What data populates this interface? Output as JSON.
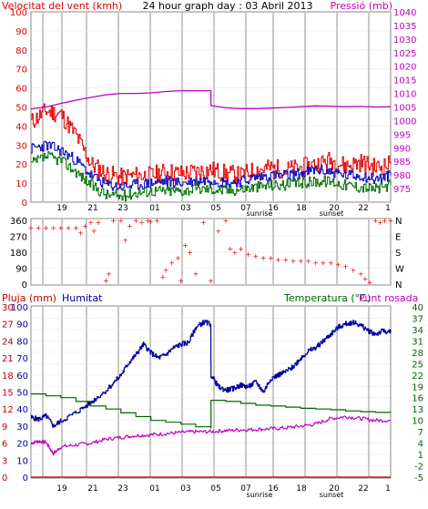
{
  "colors": {
    "wind_max": "#e00000",
    "wind_avg": "#0000c0",
    "wind_min": "#007000",
    "pressure": "#c000c0",
    "rain": "#c00000",
    "humidity": "#0000a0",
    "temperature": "#006400",
    "dewpoint": "#c000c0",
    "grid": "#c8c8c8"
  },
  "chart_data": [
    {
      "type": "line",
      "title": "24 hour graph day : 03 Abril 2013",
      "left_axis_label": "Velocitat del vent (kmh)",
      "right_axis_label": "Pressió (mb)",
      "ylim_left": [
        0,
        100
      ],
      "ylim_right": [
        970,
        1040
      ],
      "left_ticks": [
        0,
        10,
        20,
        30,
        40,
        50,
        60,
        70,
        80,
        90,
        100
      ],
      "right_ticks": [
        975,
        980,
        985,
        990,
        995,
        1000,
        1005,
        1010,
        1015,
        1020,
        1025,
        1030,
        1035,
        1040
      ],
      "x_ticks": [
        "19",
        "21",
        "23",
        "01",
        "03",
        "05",
        "07",
        "16",
        "18",
        "20",
        "22",
        "1"
      ],
      "x_annotations": [
        "sunrise",
        "sunset"
      ],
      "series": [
        {
          "name": "",
          "axis": "left",
          "color": "wind_max",
          "x": [
            0,
            1,
            2,
            3,
            4,
            5,
            6,
            7,
            8,
            9,
            10,
            11,
            12,
            13,
            14,
            15,
            16,
            17,
            18,
            19,
            20,
            21,
            22,
            23,
            24
          ],
          "values": [
            42,
            48,
            46,
            35,
            20,
            15,
            13,
            14,
            14,
            16,
            15,
            16,
            17,
            15,
            14,
            17,
            18,
            17,
            18,
            20,
            22,
            19,
            21,
            18,
            20
          ]
        },
        {
          "name": "",
          "axis": "left",
          "color": "wind_avg",
          "x": [
            0,
            1,
            2,
            3,
            4,
            5,
            6,
            7,
            8,
            9,
            10,
            11,
            12,
            13,
            14,
            15,
            16,
            17,
            18,
            19,
            20,
            21,
            22,
            23,
            24
          ],
          "values": [
            28,
            30,
            27,
            22,
            14,
            9,
            8,
            9,
            10,
            11,
            10,
            11,
            12,
            10,
            11,
            13,
            14,
            14,
            15,
            17,
            16,
            14,
            14,
            12,
            14
          ]
        },
        {
          "name": "",
          "axis": "left",
          "color": "wind_min",
          "x": [
            0,
            1,
            2,
            3,
            4,
            5,
            6,
            7,
            8,
            9,
            10,
            11,
            12,
            13,
            14,
            15,
            16,
            17,
            18,
            19,
            20,
            21,
            22,
            23,
            24
          ],
          "values": [
            20,
            24,
            22,
            16,
            9,
            4,
            3,
            5,
            6,
            6,
            6,
            7,
            7,
            6,
            7,
            8,
            9,
            9,
            10,
            11,
            11,
            9,
            8,
            7,
            9
          ]
        },
        {
          "name": "",
          "axis": "right",
          "color": "pressure",
          "x": [
            0,
            1,
            2,
            3,
            4,
            5,
            6,
            7,
            8,
            9,
            10,
            11,
            12,
            12.01,
            13,
            14,
            15,
            16,
            17,
            18,
            19,
            20,
            21,
            22,
            23,
            24
          ],
          "values": [
            1004.3,
            1005,
            1006.3,
            1007.5,
            1008.5,
            1009.5,
            1010,
            1010,
            1010.2,
            1010.7,
            1011,
            1011,
            1011,
            1005.5,
            1004.7,
            1004.4,
            1004.4,
            1004.6,
            1004.8,
            1005.1,
            1005.4,
            1005.3,
            1005.1,
            1005.2,
            1005,
            1005.1
          ]
        }
      ]
    },
    {
      "type": "scatter",
      "title": "",
      "ylim": [
        0,
        360
      ],
      "y_ticks": [
        0,
        90,
        180,
        270,
        360
      ],
      "compass_labels": [
        "N",
        "W",
        "S",
        "E",
        "N"
      ],
      "series": [
        {
          "name": "",
          "color": "wind_max",
          "x": [
            0,
            0.5,
            1,
            1.5,
            2,
            2.5,
            3,
            3.3,
            3.6,
            4,
            4.2,
            4.5,
            5,
            5.2,
            5.5,
            6,
            6.3,
            6.6,
            7,
            7.4,
            7.8,
            8,
            8.4,
            8.8,
            9,
            9.4,
            9.8,
            10,
            10.3,
            10.6,
            11,
            11.5,
            12,
            12.5,
            13,
            13.3,
            13.6,
            14,
            14.5,
            15,
            15.5,
            16,
            16.5,
            17,
            17.5,
            18,
            18.5,
            19,
            19.5,
            20,
            20.5,
            21,
            21.5,
            22,
            22.3,
            22.6,
            23,
            23.3,
            23.6,
            24
          ],
          "values": [
            320,
            320,
            320,
            320,
            320,
            320,
            320,
            290,
            330,
            350,
            300,
            350,
            20,
            60,
            360,
            360,
            250,
            330,
            360,
            350,
            360,
            355,
            360,
            40,
            80,
            120,
            150,
            20,
            220,
            180,
            60,
            350,
            20,
            300,
            360,
            200,
            180,
            200,
            170,
            160,
            150,
            150,
            140,
            140,
            130,
            130,
            130,
            120,
            120,
            120,
            110,
            100,
            80,
            60,
            30,
            10,
            360,
            350,
            360,
            360
          ]
        }
      ]
    },
    {
      "type": "line",
      "title": "",
      "labels": [
        "Pluja (mm)",
        "Humitat",
        "Temperatura (°C)",
        "Punt rosada"
      ],
      "ylim_left": [
        0,
        30
      ],
      "left_ticks": [
        0,
        3,
        6,
        9,
        12,
        15,
        18,
        21,
        24,
        27,
        30
      ],
      "ylim_left_inner": [
        0,
        100
      ],
      "left_inner_ticks": [
        0,
        10,
        20,
        30,
        40,
        50,
        60,
        70,
        80,
        90,
        100
      ],
      "ylim_right": [
        -5,
        40
      ],
      "right_ticks": [
        -5,
        -2,
        1,
        4,
        7,
        10,
        13,
        16,
        19,
        22,
        25,
        28,
        31,
        34,
        37,
        40
      ],
      "x_ticks": [
        "19",
        "21",
        "23",
        "01",
        "03",
        "05",
        "07",
        "16",
        "18",
        "20",
        "22",
        "1"
      ],
      "x_annotations": [
        "sunrise",
        "sunset"
      ],
      "series": [
        {
          "name": "Pluja (mm)",
          "axis": "left_inner",
          "color": "rain",
          "x": [
            0,
            24
          ],
          "values": [
            0,
            0
          ]
        },
        {
          "name": "Humitat",
          "axis": "left_inner",
          "color": "humidity",
          "x": [
            0,
            0.5,
            1,
            1.5,
            2,
            3,
            4,
            5,
            6,
            6.5,
            7,
            7.5,
            8,
            8.5,
            9,
            9.5,
            10,
            10.5,
            11,
            11.5,
            12,
            12.01,
            12.5,
            13,
            13.5,
            14,
            14.5,
            15,
            15.5,
            16,
            16.5,
            17,
            17.5,
            18,
            18.5,
            19,
            19.5,
            20,
            20.5,
            21,
            21.5,
            22,
            22.5,
            23,
            23.5,
            24
          ],
          "values": [
            35,
            34,
            36,
            30,
            33,
            38,
            44,
            51,
            60,
            67,
            72,
            78,
            73,
            70,
            72,
            76,
            78,
            79,
            88,
            91,
            90,
            60,
            53,
            51,
            52,
            54,
            53,
            56,
            50,
            58,
            60,
            62,
            65,
            70,
            74,
            76,
            80,
            84,
            88,
            90,
            91,
            89,
            86,
            84,
            86,
            85
          ]
        },
        {
          "name": "Temperatura (°C)",
          "axis": "right",
          "color": "temperature",
          "x": [
            0,
            1,
            2,
            3,
            4,
            5,
            6,
            7,
            8,
            9,
            10,
            11,
            12,
            12.01,
            13,
            14,
            15,
            16,
            17,
            18,
            19,
            20,
            21,
            22,
            23,
            24
          ],
          "values": [
            17,
            16.5,
            16,
            15,
            13.8,
            13,
            12,
            11,
            10,
            9.5,
            9,
            8.3,
            8,
            15.3,
            15,
            14.5,
            14,
            13.8,
            13.5,
            13.2,
            13,
            12.8,
            12.5,
            12.3,
            12.1,
            12
          ]
        },
        {
          "name": "Punt rosada",
          "axis": "right",
          "color": "dewpoint",
          "x": [
            0,
            0.5,
            1,
            1.5,
            2,
            3,
            4,
            5,
            6,
            7,
            8,
            9,
            10,
            11,
            12,
            13,
            14,
            15,
            16,
            17,
            18,
            19,
            20,
            21,
            22,
            23,
            24
          ],
          "values": [
            4,
            4.5,
            4.2,
            1.2,
            3,
            3.5,
            4,
            5,
            5.5,
            6,
            6.2,
            6.5,
            6.8,
            7,
            7,
            7.3,
            7.5,
            7.6,
            7.8,
            8,
            8.5,
            9,
            10.5,
            11,
            10.5,
            10,
            10
          ]
        }
      ]
    }
  ]
}
